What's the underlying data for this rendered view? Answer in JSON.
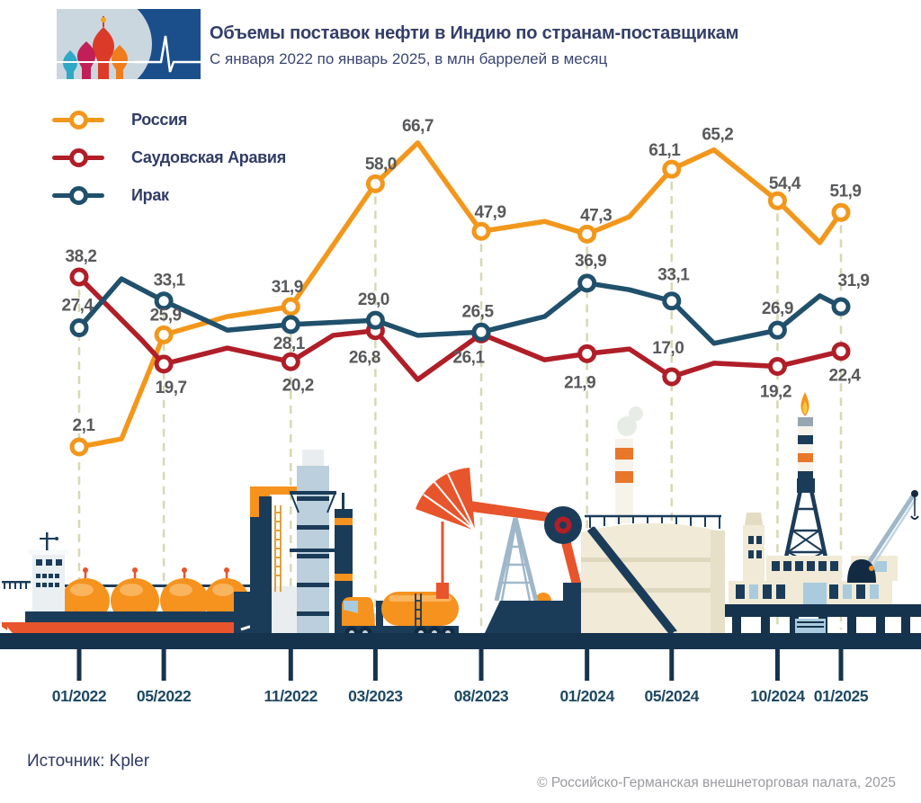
{
  "header": {
    "title": "Объемы поставок нефти в Индию по странам-поставщикам",
    "subtitle": "С января 2022 по январь 2025, в млн баррелей в месяц"
  },
  "legend": {
    "items": [
      {
        "key": "russia",
        "label": "Россия",
        "color": "#F2971B"
      },
      {
        "key": "saudi-arabia",
        "label": "Саудовская Аравия",
        "color": "#B01E28"
      },
      {
        "key": "iraq",
        "label": "Ирак",
        "color": "#20506B"
      }
    ]
  },
  "chart_data": {
    "type": "line",
    "title": "Объемы поставок нефти в Индию по странам-поставщикам",
    "subtitle": "С января 2022 по январь 2025, в млн баррелей в месяц",
    "unit": "млн баррелей в месяц",
    "x_axis": {
      "tick_labels": [
        "01/2022",
        "05/2022",
        "11/2022",
        "03/2023",
        "08/2023",
        "01/2024",
        "05/2024",
        "10/2024",
        "01/2025"
      ],
      "tick_months": [
        0,
        4,
        10,
        14,
        19,
        24,
        28,
        33,
        36
      ]
    },
    "grid": "dashed-vertical",
    "legend_position": "top-left",
    "label_color": "#58595B",
    "gridline_color": "#D8D8B3",
    "series": [
      {
        "name": "Россия",
        "key": "russia",
        "color": "#F2971B",
        "points": [
          {
            "m": 0,
            "v": 2.1,
            "label": "2,1",
            "dx": 5,
            "dy": -18
          },
          {
            "m": 2,
            "v": 3.8
          },
          {
            "m": 4,
            "v": 25.9,
            "label": "25,9",
            "dx": 2,
            "dy": -16
          },
          {
            "m": 7,
            "v": 29.8
          },
          {
            "m": 10,
            "v": 31.9,
            "label": "31,9",
            "dx": -4,
            "dy": -16
          },
          {
            "m": 14,
            "v": 58.0,
            "label": "58,0",
            "dx": 6,
            "dy": -16
          },
          {
            "m": 16,
            "v": 66.7,
            "label": "66,7",
            "dx": 0,
            "dy": -13,
            "highlight": true,
            "marker": false
          },
          {
            "m": 19,
            "v": 47.9,
            "label": "47,9",
            "dx": 10,
            "dy": -15
          },
          {
            "m": 22,
            "v": 50.0
          },
          {
            "m": 24,
            "v": 47.3,
            "label": "47,3",
            "dx": 10,
            "dy": -15
          },
          {
            "m": 26,
            "v": 51.0
          },
          {
            "m": 28,
            "v": 61.1,
            "label": "61,1",
            "dx": -8,
            "dy": -15
          },
          {
            "m": 30,
            "v": 65.2,
            "label": "65,2",
            "dx": 4,
            "dy": -11,
            "highlight": true,
            "marker": false
          },
          {
            "m": 33,
            "v": 54.4,
            "label": "54,4",
            "dx": 8,
            "dy": -13
          },
          {
            "m": 35,
            "v": 45.5
          },
          {
            "m": 36,
            "v": 51.9,
            "label": "51,9",
            "dx": 5,
            "dy": -18
          }
        ]
      },
      {
        "name": "Саудовская Аравия",
        "key": "saudi-arabia",
        "color": "#B01E28",
        "points": [
          {
            "m": 0,
            "v": 38.2,
            "label": "38,2",
            "dx": 2,
            "dy": -17
          },
          {
            "m": 3,
            "v": 24.6
          },
          {
            "m": 4,
            "v": 19.7,
            "label": "19,7",
            "dx": 8,
            "dy": 32
          },
          {
            "m": 7,
            "v": 23.1
          },
          {
            "m": 10,
            "v": 20.2,
            "label": "20,2",
            "dx": 8,
            "dy": 32
          },
          {
            "m": 12,
            "v": 25.8
          },
          {
            "m": 14,
            "v": 26.8,
            "label": "26,8",
            "dx": -12,
            "dy": 36
          },
          {
            "m": 16,
            "v": 16.4
          },
          {
            "m": 19,
            "v": 26.1,
            "label": "26,1",
            "dx": -14,
            "dy": 32
          },
          {
            "m": 22,
            "v": 20.6
          },
          {
            "m": 24,
            "v": 21.9,
            "label": "21,9",
            "dx": -8,
            "dy": 38
          },
          {
            "m": 26,
            "v": 22.9
          },
          {
            "m": 28,
            "v": 17.0,
            "label": "17,0",
            "dx": -4,
            "dy": -26
          },
          {
            "m": 30,
            "v": 19.9
          },
          {
            "m": 33,
            "v": 19.2,
            "label": "19,2",
            "dx": -2,
            "dy": 34
          },
          {
            "m": 36,
            "v": 22.4,
            "label": "22,4",
            "dx": 4,
            "dy": 33
          }
        ]
      },
      {
        "name": "Ирак",
        "key": "iraq",
        "color": "#20506B",
        "points": [
          {
            "m": 0,
            "v": 27.4,
            "label": "27,4",
            "dx": -2,
            "dy": -19
          },
          {
            "m": 2,
            "v": 37.8
          },
          {
            "m": 4,
            "v": 33.1,
            "label": "33,1",
            "dx": 6,
            "dy": -17
          },
          {
            "m": 7,
            "v": 26.9
          },
          {
            "m": 10,
            "v": 28.1,
            "label": "28,1",
            "dx": -2,
            "dy": 27
          },
          {
            "m": 14,
            "v": 29.0,
            "label": "29,0",
            "dx": -2,
            "dy": -17
          },
          {
            "m": 16,
            "v": 25.8
          },
          {
            "m": 19,
            "v": 26.5,
            "label": "26,5",
            "dx": -4,
            "dy": -17
          },
          {
            "m": 22,
            "v": 29.8
          },
          {
            "m": 24,
            "v": 36.9,
            "label": "36,9",
            "dx": 4,
            "dy": -19
          },
          {
            "m": 26,
            "v": 35.5
          },
          {
            "m": 28,
            "v": 33.1,
            "label": "33,1",
            "dx": 2,
            "dy": -23
          },
          {
            "m": 30,
            "v": 24.1
          },
          {
            "m": 33,
            "v": 26.9,
            "label": "26,9",
            "dx": 0,
            "dy": -18
          },
          {
            "m": 35,
            "v": 34.2
          },
          {
            "m": 36,
            "v": 31.9,
            "label": "31,9",
            "dx": 14,
            "dy": -23
          }
        ]
      }
    ]
  },
  "footer": {
    "source": "Источник: Kpler",
    "copyright": "© Российско-Германская внешнеторговая палата, 2025"
  }
}
